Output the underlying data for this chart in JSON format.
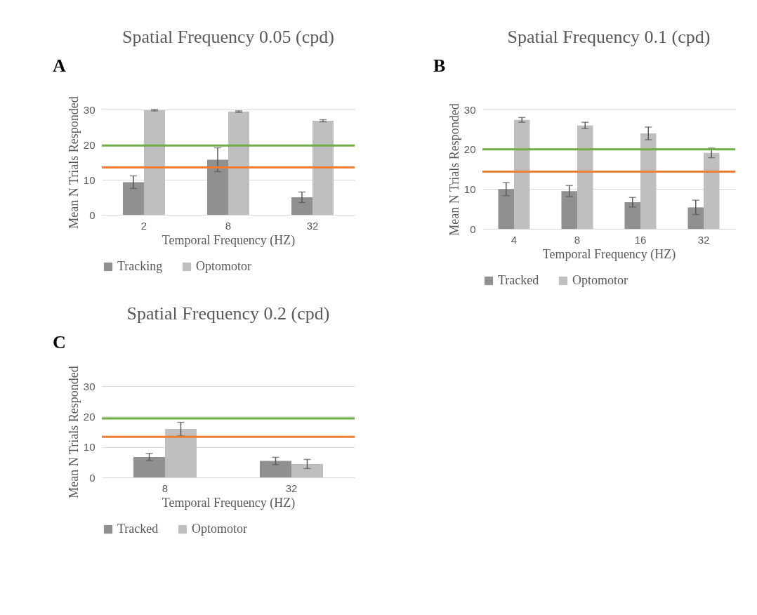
{
  "chart_data": [
    {
      "type": "bar",
      "title": "Spatial Frequency 0.05 (cpd)",
      "xlabel": "Temporal Frequency (HZ)",
      "ylabel": "Mean N Trials Responded",
      "annotations": [
        "A"
      ],
      "categories": [
        "2",
        "8",
        "32"
      ],
      "series": [
        {
          "name": "Tracking",
          "color": "#909090",
          "values": [
            9.3,
            15.7,
            5.0
          ],
          "errors": [
            1.8,
            3.4,
            1.5
          ]
        },
        {
          "name": "Optomotor",
          "color": "#bfbfbf",
          "values": [
            29.8,
            29.4,
            26.8
          ],
          "errors": [
            0.2,
            0.2,
            0.3
          ]
        }
      ],
      "ylim": [
        0,
        30
      ],
      "yticks": [
        0,
        10,
        20,
        30
      ],
      "grid": "y",
      "legend": "bottom",
      "ref_lines": [
        {
          "axis": "y",
          "value": 19.75,
          "color": "#70ad47"
        },
        {
          "axis": "y",
          "value": 13.5,
          "color": "#ed7d31"
        }
      ]
    },
    {
      "type": "bar",
      "title": "Spatial Frequency 0.1 (cpd)",
      "xlabel": "Temporal Frequency (HZ)",
      "ylabel": "Mean N Trials Responded",
      "annotations": [
        "B"
      ],
      "categories": [
        "4",
        "8",
        "16",
        "32"
      ],
      "series": [
        {
          "name": "Tracked",
          "color": "#909090",
          "values": [
            10.0,
            9.5,
            6.7,
            5.4
          ],
          "errors": [
            1.65,
            1.4,
            1.2,
            1.8
          ]
        },
        {
          "name": "Optomotor",
          "color": "#bfbfbf",
          "values": [
            27.4,
            26.0,
            24.0,
            19.1
          ],
          "errors": [
            0.6,
            0.8,
            1.6,
            1.2
          ]
        }
      ],
      "ylim": [
        0,
        30
      ],
      "yticks": [
        0,
        10,
        20,
        30
      ],
      "grid": "y",
      "legend": "bottom",
      "ref_lines": [
        {
          "axis": "y",
          "value": 20.0,
          "color": "#70ad47"
        },
        {
          "axis": "y",
          "value": 14.4,
          "color": "#ed7d31"
        }
      ]
    },
    {
      "type": "bar",
      "title": "Spatial Frequency 0.2 (cpd)",
      "xlabel": "Temporal Frequency (HZ)",
      "ylabel": "Mean N Trials Responded",
      "annotations": [
        "C"
      ],
      "categories": [
        "8",
        "32"
      ],
      "series": [
        {
          "name": "Tracked",
          "color": "#909090",
          "values": [
            6.7,
            5.4
          ],
          "errors": [
            1.2,
            1.2
          ]
        },
        {
          "name": "Optomotor",
          "color": "#bfbfbf",
          "values": [
            15.9,
            4.4
          ],
          "errors": [
            2.2,
            1.5
          ]
        }
      ],
      "ylim": [
        0,
        30
      ],
      "yticks": [
        0,
        10,
        20,
        30
      ],
      "grid": "y",
      "legend": "bottom",
      "ref_lines": [
        {
          "axis": "y",
          "value": 19.4,
          "color": "#70ad47"
        },
        {
          "axis": "y",
          "value": 13.3,
          "color": "#ed7d31"
        }
      ]
    }
  ]
}
